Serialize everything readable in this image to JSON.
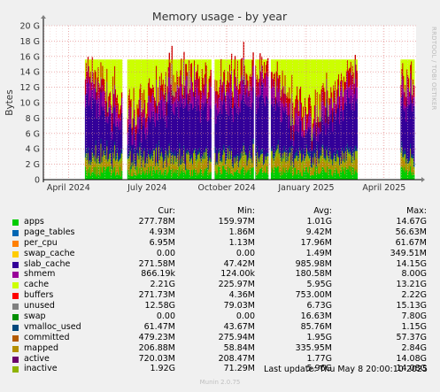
{
  "chart_data": {
    "type": "area",
    "title": "Memory usage - by year",
    "ylabel": "Bytes",
    "ylim": [
      0,
      20000000000
    ],
    "y_ticks": [
      "0",
      "2 G",
      "4 G",
      "6 G",
      "8 G",
      "10 G",
      "12 G",
      "14 G",
      "16 G",
      "18 G",
      "20 G"
    ],
    "x_ticks": [
      {
        "label": "April 2024",
        "date": "2024-04-01"
      },
      {
        "label": "July 2024",
        "date": "2024-07-01"
      },
      {
        "label": "October 2024",
        "date": "2024-10-01"
      },
      {
        "label": "January 2025",
        "date": "2025-01-01"
      },
      {
        "label": "April 2025",
        "date": "2025-04-01"
      }
    ],
    "x_range": [
      "2024-03-03",
      "2025-05-08"
    ],
    "grid": true,
    "gaps": [
      [
        "2024-03-03",
        "2024-04-20"
      ],
      [
        "2024-06-02",
        "2024-06-08"
      ],
      [
        "2024-09-13",
        "2024-09-17"
      ],
      [
        "2024-11-01",
        "2024-11-03"
      ],
      [
        "2024-11-18",
        "2024-11-21"
      ],
      [
        "2025-03-01",
        "2025-04-20"
      ],
      [
        "2025-05-06",
        "2025-05-08"
      ]
    ],
    "series": [
      {
        "name": "apps",
        "color": "#00cc00",
        "typical": 278000000
      },
      {
        "name": "page_tables",
        "color": "#0066b3",
        "typical": 5000000
      },
      {
        "name": "per_cpu",
        "color": "#ff8000",
        "typical": 7000000
      },
      {
        "name": "swap_cache",
        "color": "#ffcc00",
        "typical": 0
      },
      {
        "name": "slab_cache",
        "color": "#330099",
        "typical": 272000000
      },
      {
        "name": "shmem",
        "color": "#990099",
        "typical": 866000
      },
      {
        "name": "cache",
        "color": "#ccff00",
        "typical": 2210000000
      },
      {
        "name": "buffers",
        "color": "#ff0000",
        "typical": 272000000
      },
      {
        "name": "unused",
        "color": "#808080",
        "typical": 12580000000
      },
      {
        "name": "swap",
        "color": "#008f00",
        "typical": 0
      },
      {
        "name": "vmalloc_used",
        "color": "#00487d",
        "typical": 61000000
      },
      {
        "name": "committed",
        "color": "#b35a00",
        "typical": 479000000
      },
      {
        "name": "mapped",
        "color": "#b38f00",
        "typical": 207000000
      },
      {
        "name": "active",
        "color": "#6b006b",
        "typical": 720000000
      },
      {
        "name": "inactive",
        "color": "#8fb300",
        "typical": 1920000000
      }
    ]
  },
  "legend": {
    "headers": {
      "cur": "Cur:",
      "min": "Min:",
      "avg": "Avg:",
      "max": "Max:"
    },
    "rows": [
      {
        "name": "apps",
        "color": "#00cc00",
        "cur": "277.78M",
        "min": "159.97M",
        "avg": "1.01G",
        "max": "14.67G"
      },
      {
        "name": "page_tables",
        "color": "#0066b3",
        "cur": "4.93M",
        "min": "1.86M",
        "avg": "9.42M",
        "max": "56.63M"
      },
      {
        "name": "per_cpu",
        "color": "#ff8000",
        "cur": "6.95M",
        "min": "1.13M",
        "avg": "17.96M",
        "max": "61.67M"
      },
      {
        "name": "swap_cache",
        "color": "#ffcc00",
        "cur": "0.00",
        "min": "0.00",
        "avg": "1.49M",
        "max": "349.51M"
      },
      {
        "name": "slab_cache",
        "color": "#330099",
        "cur": "271.58M",
        "min": "47.42M",
        "avg": "985.98M",
        "max": "14.15G"
      },
      {
        "name": "shmem",
        "color": "#990099",
        "cur": "866.19k",
        "min": "124.00k",
        "avg": "180.58M",
        "max": "8.00G"
      },
      {
        "name": "cache",
        "color": "#ccff00",
        "cur": "2.21G",
        "min": "225.97M",
        "avg": "5.95G",
        "max": "13.21G"
      },
      {
        "name": "buffers",
        "color": "#ff0000",
        "cur": "271.73M",
        "min": "4.36M",
        "avg": "753.00M",
        "max": "2.22G"
      },
      {
        "name": "unused",
        "color": "#808080",
        "cur": "12.58G",
        "min": "79.03M",
        "avg": "6.73G",
        "max": "15.13G"
      },
      {
        "name": "swap",
        "color": "#008f00",
        "cur": "0.00",
        "min": "0.00",
        "avg": "16.63M",
        "max": "7.80G"
      },
      {
        "name": "vmalloc_used",
        "color": "#00487d",
        "cur": "61.47M",
        "min": "43.67M",
        "avg": "85.76M",
        "max": "1.15G"
      },
      {
        "name": "committed",
        "color": "#b35a00",
        "cur": "479.23M",
        "min": "275.94M",
        "avg": "1.95G",
        "max": "57.37G"
      },
      {
        "name": "mapped",
        "color": "#b38f00",
        "cur": "206.88M",
        "min": "58.84M",
        "avg": "335.95M",
        "max": "2.84G"
      },
      {
        "name": "active",
        "color": "#6b006b",
        "cur": "720.03M",
        "min": "208.47M",
        "avg": "1.77G",
        "max": "14.08G"
      },
      {
        "name": "inactive",
        "color": "#8fb300",
        "cur": "1.92G",
        "min": "71.29M",
        "avg": "5.96G",
        "max": "14.08G"
      }
    ]
  },
  "footer": {
    "last_update": "Last update: Thu May  8 20:00:10 2025",
    "generator": "Munin 2.0.75",
    "side_label": "RRDTOOL / TOBI OETIKER"
  }
}
